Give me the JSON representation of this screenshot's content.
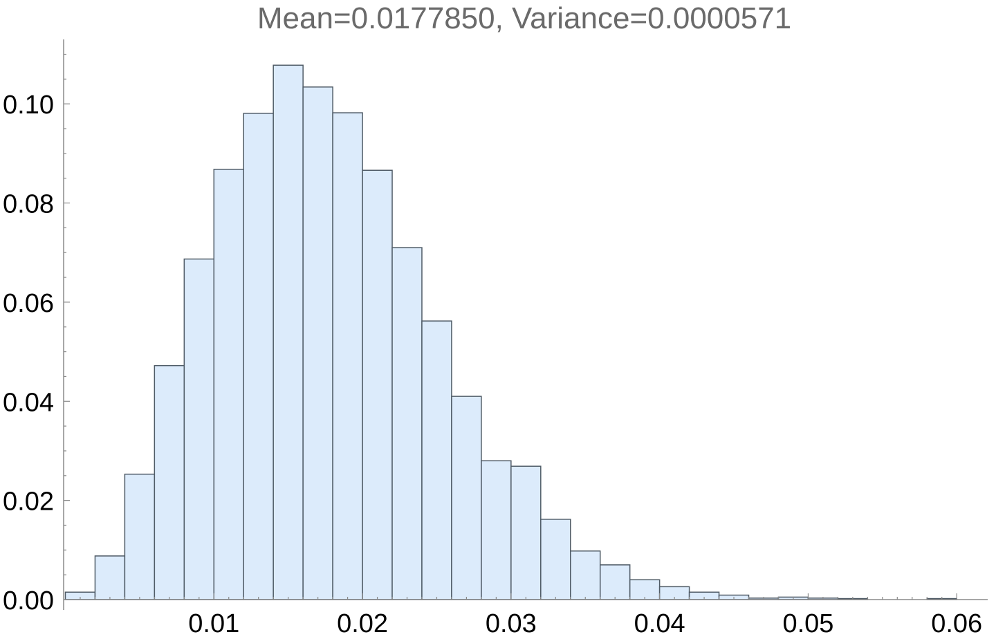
{
  "chart_data": {
    "type": "bar",
    "title": "Mean=0.0177850, Variance=0.0000571",
    "xlabel": "",
    "ylabel": "",
    "bin_width": 0.002,
    "bins_start": [
      0.0,
      0.002,
      0.004,
      0.006,
      0.008,
      0.01,
      0.012,
      0.014,
      0.016,
      0.018,
      0.02,
      0.022,
      0.024,
      0.026,
      0.028,
      0.03,
      0.032,
      0.034,
      0.036,
      0.038,
      0.04,
      0.042,
      0.044,
      0.046,
      0.048,
      0.05,
      0.052,
      0.058
    ],
    "values": [
      0.0015,
      0.0088,
      0.0253,
      0.0472,
      0.0687,
      0.0868,
      0.0981,
      0.1078,
      0.1034,
      0.0982,
      0.0866,
      0.071,
      0.0562,
      0.041,
      0.028,
      0.0269,
      0.0162,
      0.0098,
      0.007,
      0.004,
      0.0026,
      0.0015,
      0.0009,
      0.0003,
      0.0005,
      0.0003,
      0.0002,
      0.0002
    ],
    "xlim": [
      -0.001,
      0.0608
    ],
    "ylim": [
      0.0,
      0.113
    ],
    "x_ticks": [
      0.01,
      0.02,
      0.03,
      0.04,
      0.05,
      0.06
    ],
    "x_tick_labels": [
      "0.01",
      "0.02",
      "0.03",
      "0.04",
      "0.05",
      "0.06"
    ],
    "y_ticks": [
      0.0,
      0.02,
      0.04,
      0.06,
      0.08,
      0.1
    ],
    "y_tick_labels": [
      "0.00",
      "0.02",
      "0.04",
      "0.06",
      "0.08",
      "0.10"
    ],
    "grid": false,
    "legend": "none",
    "colors": {
      "bar_fill": "#dcebfb",
      "bar_stroke": "#4f5b66",
      "axis": "#8a8a8a",
      "title": "#6a6a6a",
      "tick_label": "#000000"
    }
  }
}
